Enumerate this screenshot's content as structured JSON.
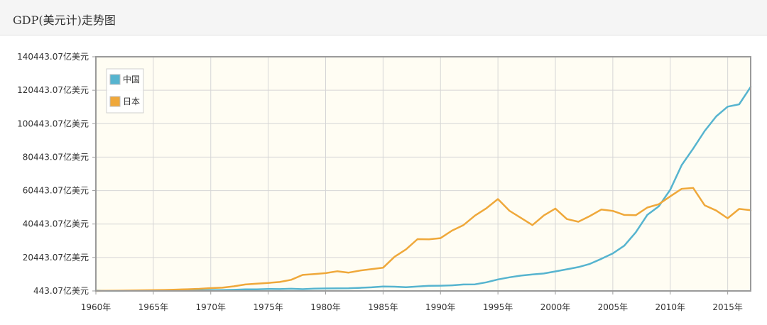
{
  "header": {
    "title": "GDP(美元计)走势图"
  },
  "colors": {
    "china": "#56b4cf",
    "japan": "#efa83a",
    "plot_bg": "#fffdf3",
    "grid": "#d6d6d6",
    "frame": "#9a9a9a"
  },
  "chart_data": {
    "type": "line",
    "title": "GDP(美元计)走势图",
    "xlabel": "",
    "ylabel": "",
    "xlim": [
      1960,
      2017
    ],
    "ylim": [
      443.07,
      140443.07
    ],
    "y_tick_values": [
      443.07,
      20443.07,
      40443.07,
      60443.07,
      80443.07,
      100443.07,
      120443.07,
      140443.07
    ],
    "y_tick_labels": [
      "443.07亿美元",
      "20443.07亿美元",
      "40443.07亿美元",
      "60443.07亿美元",
      "80443.07亿美元",
      "100443.07亿美元",
      "120443.07亿美元",
      "140443.07亿美元"
    ],
    "x_tick_values": [
      1960,
      1965,
      1970,
      1975,
      1980,
      1985,
      1990,
      1995,
      2000,
      2005,
      2010,
      2015
    ],
    "x_tick_labels": [
      "1960年",
      "1965年",
      "1970年",
      "1975年",
      "1980年",
      "1985年",
      "1990年",
      "1995年",
      "2000年",
      "2005年",
      "2010年",
      "2015年"
    ],
    "grid": true,
    "legend_position": "top-left",
    "x": [
      1960,
      1961,
      1962,
      1963,
      1964,
      1965,
      1966,
      1967,
      1968,
      1969,
      1970,
      1971,
      1972,
      1973,
      1974,
      1975,
      1976,
      1977,
      1978,
      1979,
      1980,
      1981,
      1982,
      1983,
      1984,
      1985,
      1986,
      1987,
      1988,
      1989,
      1990,
      1991,
      1992,
      1993,
      1994,
      1995,
      1996,
      1997,
      1998,
      1999,
      2000,
      2001,
      2002,
      2003,
      2004,
      2005,
      2006,
      2007,
      2008,
      2009,
      2010,
      2011,
      2012,
      2013,
      2014,
      2015,
      2016,
      2017
    ],
    "series": [
      {
        "name": "中国",
        "color": "#56b4cf",
        "values": [
          600,
          500,
          470,
          510,
          600,
          700,
          770,
          730,
          720,
          800,
          920,
          1000,
          1130,
          1390,
          1440,
          1640,
          1540,
          1750,
          1500,
          1800,
          1910,
          1960,
          2050,
          2300,
          2600,
          3100,
          3000,
          2700,
          3100,
          3500,
          3600,
          3800,
          4300,
          4400,
          5600,
          7300,
          8600,
          9600,
          10300,
          10900,
          12100,
          13400,
          14700,
          16600,
          19600,
          22900,
          27500,
          35500,
          45900,
          51000,
          61000,
          75700,
          85600,
          96100,
          104800,
          110600,
          112000,
          122400
        ]
      },
      {
        "name": "日本",
        "color": "#efa83a",
        "values": [
          440,
          540,
          610,
          700,
          820,
          910,
          1050,
          1230,
          1460,
          1720,
          2130,
          2400,
          3190,
          4320,
          4800,
          5250,
          5770,
          7090,
          10050,
          10500,
          11100,
          12200,
          11400,
          12600,
          13500,
          14300,
          20900,
          25300,
          31400,
          31300,
          32000,
          36500,
          39800,
          45500,
          49900,
          55400,
          48400,
          44100,
          39800,
          45600,
          49700,
          43400,
          41800,
          45200,
          49100,
          48300,
          45900,
          45700,
          50300,
          52300,
          57000,
          61500,
          62000,
          51600,
          48500,
          43900,
          49500,
          48700
        ]
      }
    ]
  }
}
